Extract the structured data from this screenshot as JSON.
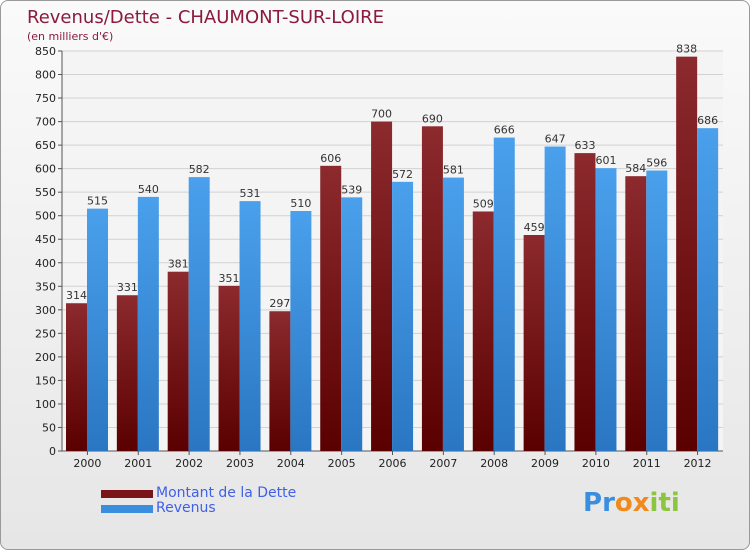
{
  "header": {
    "title": "Revenus/Dette - CHAUMONT-SUR-LOIRE",
    "subtitle": "(en milliers d'€)"
  },
  "colors": {
    "dette": "#7a1418",
    "revenus": "#3b8ede",
    "title": "#8b1a3c"
  },
  "legend": {
    "dette_label": "Montant de la Dette",
    "revenus_label": "Revenus"
  },
  "logo": {
    "text": "Proxiti",
    "letters": [
      "P",
      "r",
      "o",
      "x",
      "i",
      "t",
      "i"
    ],
    "colors": [
      "#3a8ee0",
      "#3a8ee0",
      "#f08a1c",
      "#f08a1c",
      "#8cc63f",
      "#8cc63f",
      "#8cc63f"
    ]
  },
  "chart_data": {
    "type": "bar",
    "title": "Revenus/Dette - CHAUMONT-SUR-LOIRE",
    "ylabel": "(en milliers d'€)",
    "xlabel": "",
    "ylim": [
      0,
      850
    ],
    "ytick_step": 50,
    "grid": true,
    "legend_position": "bottom-left",
    "categories": [
      "2000",
      "2001",
      "2002",
      "2003",
      "2004",
      "2005",
      "2006",
      "2007",
      "2008",
      "2009",
      "2010",
      "2011",
      "2012"
    ],
    "series": [
      {
        "name": "Montant de la Dette",
        "values": [
          314,
          331,
          381,
          351,
          297,
          606,
          700,
          690,
          509,
          459,
          633,
          584,
          838
        ]
      },
      {
        "name": "Revenus",
        "values": [
          515,
          540,
          582,
          531,
          510,
          539,
          572,
          581,
          666,
          647,
          601,
          596,
          686
        ]
      }
    ]
  }
}
